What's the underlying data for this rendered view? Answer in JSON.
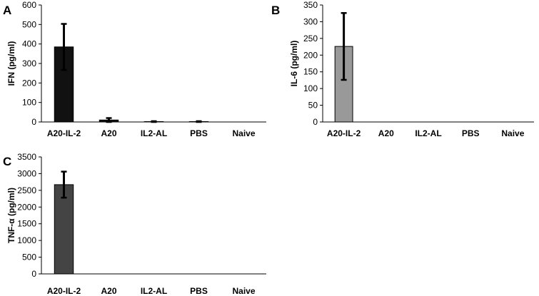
{
  "chart_data": [
    {
      "type": "bar",
      "panel": "A",
      "ylabel": "IFN (pg/ml)",
      "categories": [
        "A20-IL-2",
        "A20",
        "IL2-AL",
        "PBS",
        "Naive"
      ],
      "values": [
        385,
        10,
        2,
        2,
        0
      ],
      "errors": [
        118,
        10,
        2,
        2,
        0
      ],
      "ylim": [
        0,
        600
      ],
      "yticks": [
        "0",
        "100",
        "200",
        "300",
        "400",
        "500",
        "600"
      ],
      "bar_color": "#111111",
      "grid": false,
      "legend": "none"
    },
    {
      "type": "bar",
      "panel": "B",
      "ylabel": "IL-6 (pg/ml)",
      "categories": [
        "A20-IL-2",
        "A20",
        "IL2-AL",
        "PBS",
        "Naive"
      ],
      "values": [
        226,
        0,
        0,
        0,
        0
      ],
      "errors": [
        100,
        0,
        0,
        0,
        0
      ],
      "ylim": [
        0,
        350
      ],
      "yticks": [
        "0",
        "50",
        "100",
        "150",
        "200",
        "250",
        "300",
        "350"
      ],
      "bar_color": "#999999",
      "grid": false,
      "legend": "none"
    },
    {
      "type": "bar",
      "panel": "C",
      "ylabel": "TNF-α (pg/ml)",
      "categories": [
        "A20-IL-2",
        "A20",
        "IL2-AL",
        "PBS",
        "Naive"
      ],
      "values": [
        2670,
        0,
        0,
        0,
        0
      ],
      "errors": [
        390,
        0,
        0,
        0,
        0
      ],
      "ylim": [
        0,
        3500
      ],
      "yticks": [
        "0",
        "500",
        "1000",
        "1500",
        "2000",
        "2500",
        "3000",
        "3500"
      ],
      "bar_color": "#444444",
      "grid": false,
      "legend": "none"
    }
  ]
}
